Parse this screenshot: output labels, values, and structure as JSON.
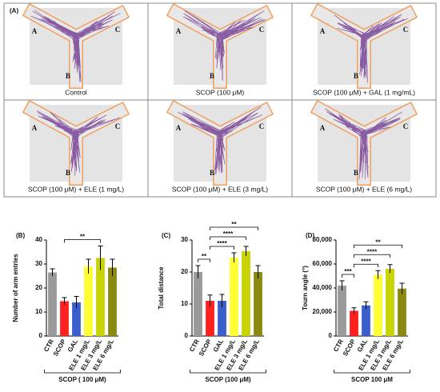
{
  "maze_panel": {
    "panel_label": "(A)",
    "cells": [
      {
        "caption": "Control",
        "arms": [
          "A",
          "B",
          "C"
        ]
      },
      {
        "caption": "SCOP (100 μM)",
        "arms": [
          "A",
          "B",
          "C"
        ]
      },
      {
        "caption": "SCOP (100 μM) + GAL (1 mg/mL)",
        "arms": [
          "A",
          "B",
          "C"
        ]
      },
      {
        "caption": "SCOP (100 μM) + ELE (1 mg/L)",
        "arms": [
          "A",
          "B",
          "C"
        ]
      },
      {
        "caption": "SCOP (100 μM) + ELE (3 mg/L)",
        "arms": [
          "A",
          "B",
          "C"
        ]
      },
      {
        "caption": "SCOP (100 μM) + ELE (6 mg/L)",
        "arms": [
          "A",
          "B",
          "C"
        ]
      }
    ]
  },
  "chart_data": [
    {
      "type": "bar",
      "panel_label": "(B)",
      "y_label": "Number of arm entries",
      "group_label": "SCOP ( 100 μM)",
      "categories": [
        "CTR",
        "SCOP",
        "GAL",
        "ELE 1 mg/L",
        "ELE 3 mg/L",
        "ELE 6 mg/L"
      ],
      "values": [
        26.5,
        14.5,
        14,
        29,
        32.5,
        28.5
      ],
      "errors": [
        1.5,
        1.5,
        2.5,
        3,
        5,
        3.5
      ],
      "colors": [
        "#9a9a9a",
        "#ff2020",
        "#3a5fcd",
        "#ffff33",
        "#c8d400",
        "#8a8a10"
      ],
      "ylim": [
        0,
        40
      ],
      "yticks": [
        0,
        10,
        20,
        30,
        40
      ],
      "significance": [
        {
          "from": 1,
          "to": 4,
          "label": "**"
        }
      ]
    },
    {
      "type": "bar",
      "panel_label": "(C)",
      "y_label": "Total distance",
      "group_label": "SCOP (100 μM)",
      "categories": [
        "CTR",
        "SCOP",
        "GAL",
        "ELE 1 mg/L",
        "ELE 3 mg/L",
        "ELE 6 mg/L"
      ],
      "values": [
        20,
        11,
        11,
        24.5,
        26.5,
        20
      ],
      "errors": [
        2,
        1.8,
        2,
        1.5,
        1.5,
        2
      ],
      "colors": [
        "#9a9a9a",
        "#ff2020",
        "#3a5fcd",
        "#ffff33",
        "#c8d400",
        "#8a8a10"
      ],
      "ylim": [
        0,
        30
      ],
      "yticks": [
        0,
        10,
        20,
        30
      ],
      "significance": [
        {
          "from": 0,
          "to": 1,
          "label": "**"
        },
        {
          "from": 1,
          "to": 3,
          "label": "****"
        },
        {
          "from": 1,
          "to": 4,
          "label": "****"
        },
        {
          "from": 1,
          "to": 5,
          "label": "**"
        }
      ]
    },
    {
      "type": "bar",
      "panel_label": "(D)",
      "y_label": "Tourn angle (°)",
      "group_label": "SCOP 100 μM",
      "categories": [
        "CTR",
        "SCOP",
        "GAL",
        "ELE 1 mg/L",
        "ELE 3 mg/L",
        "ELE 6 mg/L"
      ],
      "values": [
        42000,
        21000,
        25500,
        51000,
        56000,
        39500
      ],
      "errors": [
        4000,
        2500,
        3000,
        3500,
        3500,
        4500
      ],
      "colors": [
        "#9a9a9a",
        "#ff2020",
        "#3a5fcd",
        "#ffff33",
        "#c8d400",
        "#8a8a10"
      ],
      "ylim": [
        0,
        80000
      ],
      "yticks": [
        0,
        {
          "value": 20000,
          "label": "20,000"
        },
        {
          "value": 40000,
          "label": "40,000"
        },
        {
          "value": 60000,
          "label": "60,000"
        },
        {
          "value": 80000,
          "label": "80,000"
        }
      ],
      "significance": [
        {
          "from": 0,
          "to": 1,
          "label": "***"
        },
        {
          "from": 1,
          "to": 3,
          "label": "****"
        },
        {
          "from": 1,
          "to": 4,
          "label": "****"
        },
        {
          "from": 1,
          "to": 5,
          "label": "**"
        }
      ]
    }
  ]
}
